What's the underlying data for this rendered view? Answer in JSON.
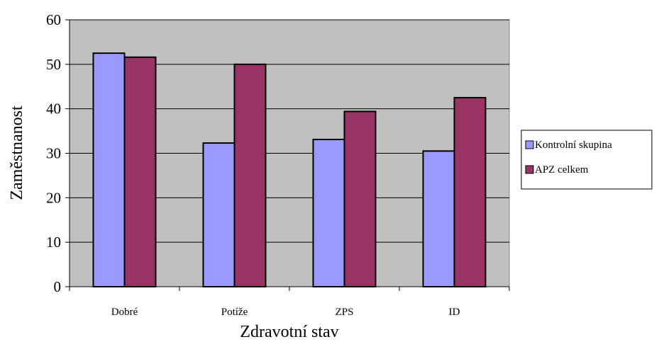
{
  "chart_data": {
    "type": "bar",
    "title": "",
    "xlabel": "Zdravotní stav",
    "ylabel": "Zaměstnanost",
    "categories": [
      "Dobré",
      "Potíže",
      "ZPS",
      "ID"
    ],
    "series": [
      {
        "name": "Kontrolní skupina",
        "values": [
          52.5,
          32.3,
          33.1,
          30.5
        ],
        "color": "#9999FF"
      },
      {
        "name": "APZ celkem",
        "values": [
          51.6,
          50.0,
          39.4,
          42.5
        ],
        "color": "#993366"
      }
    ],
    "ylim": [
      0,
      60
    ],
    "yticks": [
      0,
      10,
      20,
      30,
      40,
      50,
      60
    ],
    "grid": true,
    "legend": "right",
    "plot_background": "#C0C0C0"
  }
}
